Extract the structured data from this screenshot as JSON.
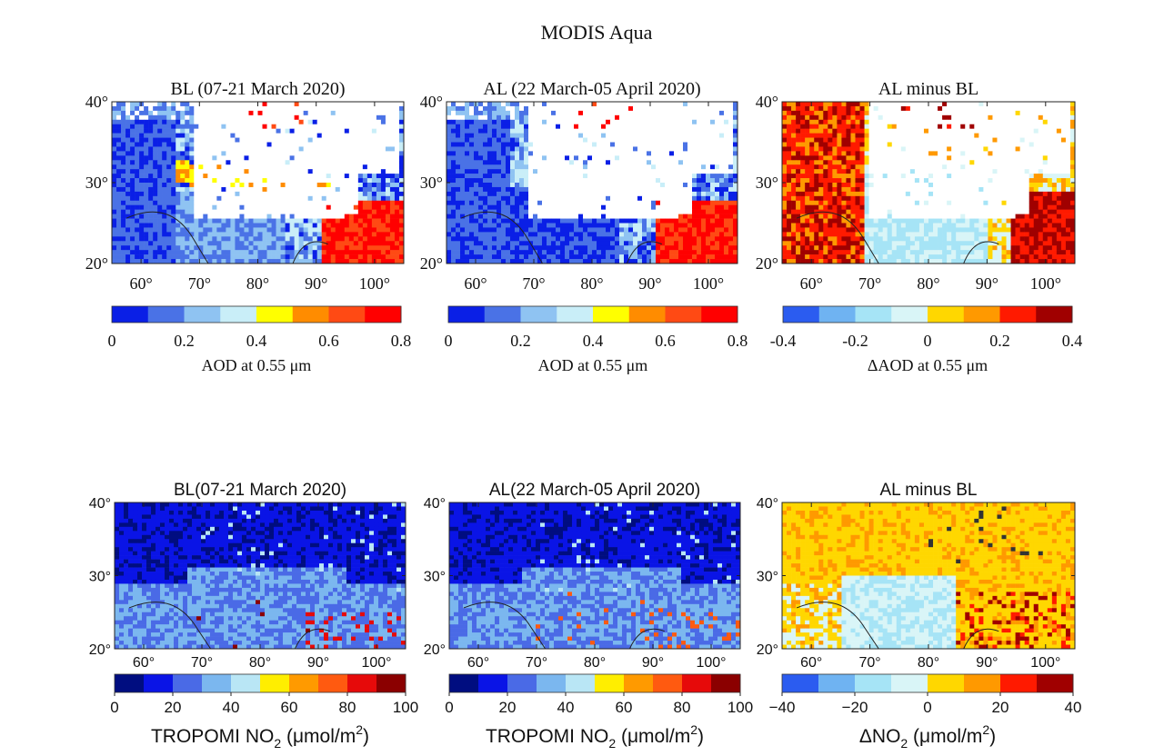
{
  "figure_title": "MODIS Aqua",
  "chart_data": [
    {
      "type": "heatmap",
      "row": "top",
      "title": "BL (07-21 March 2020)",
      "xlabel": "",
      "ylabel": "",
      "xticks": [
        "60°",
        "70°",
        "80°",
        "90°",
        "100°"
      ],
      "xtick_values": [
        60,
        70,
        80,
        90,
        100
      ],
      "yticks": [
        "40°",
        "30°",
        "20°"
      ],
      "ytick_values": [
        40,
        30,
        20
      ],
      "xlim": [
        55,
        105
      ],
      "ylim": [
        20,
        40
      ],
      "colorbar": {
        "label": "AOD at 0.55 μm",
        "ticks": [
          "0",
          "0.2",
          "0.4",
          "0.6",
          "0.8"
        ],
        "range": [
          0,
          0.8
        ],
        "colors": [
          "#0a1fe6",
          "#4a72e6",
          "#8fc3f2",
          "#c9eef8",
          "#ffff00",
          "#ff8c00",
          "#ff4a14",
          "#ff0000"
        ]
      }
    },
    {
      "type": "heatmap",
      "row": "top",
      "title": "AL (22 March-05 April 2020)",
      "xlabel": "",
      "ylabel": "",
      "xticks": [
        "60°",
        "70°",
        "80°",
        "90°",
        "100°"
      ],
      "xtick_values": [
        60,
        70,
        80,
        90,
        100
      ],
      "yticks": [
        "40°",
        "30°",
        "20°"
      ],
      "ytick_values": [
        40,
        30,
        20
      ],
      "xlim": [
        55,
        105
      ],
      "ylim": [
        20,
        40
      ],
      "colorbar": {
        "label": "AOD at 0.55 μm",
        "ticks": [
          "0",
          "0.2",
          "0.4",
          "0.6",
          "0.8"
        ],
        "range": [
          0,
          0.8
        ],
        "colors": [
          "#0a1fe6",
          "#4a72e6",
          "#8fc3f2",
          "#c9eef8",
          "#ffff00",
          "#ff8c00",
          "#ff4a14",
          "#ff0000"
        ]
      }
    },
    {
      "type": "heatmap",
      "row": "top",
      "title": "AL minus BL",
      "xlabel": "",
      "ylabel": "",
      "xticks": [
        "60°",
        "70°",
        "80°",
        "90°",
        "100°"
      ],
      "xtick_values": [
        60,
        70,
        80,
        90,
        100
      ],
      "yticks": [
        "40°",
        "30°",
        "20°"
      ],
      "ytick_values": [
        40,
        30,
        20
      ],
      "xlim": [
        55,
        105
      ],
      "ylim": [
        20,
        40
      ],
      "colorbar": {
        "label": "ΔAOD at 0.55 μm",
        "ticks": [
          "-0.4",
          "-0.2",
          "0",
          "0.2",
          "0.4"
        ],
        "range": [
          -0.4,
          0.4
        ],
        "colors": [
          "#2b5cf0",
          "#6fb3f2",
          "#a6e4f6",
          "#d9f5f7",
          "#ffd700",
          "#ff9900",
          "#ff1a00",
          "#a00000"
        ]
      }
    },
    {
      "type": "heatmap",
      "row": "bottom",
      "title": "BL(07-21 March 2020)",
      "xlabel": "",
      "ylabel": "",
      "xticks": [
        "60°",
        "70°",
        "80°",
        "90°",
        "100°"
      ],
      "xtick_values": [
        60,
        70,
        80,
        90,
        100
      ],
      "yticks": [
        "40°",
        "30°",
        "20°"
      ],
      "ytick_values": [
        40,
        30,
        20
      ],
      "xlim": [
        55,
        105
      ],
      "ylim": [
        20,
        40
      ],
      "colorbar": {
        "label_main": "TROPOMI NO",
        "label_sub": "2",
        "label_unit": " (μmol/m",
        "label_sup": "2",
        "label_end": ")",
        "ticks": [
          "0",
          "20",
          "40",
          "60",
          "80",
          "100"
        ],
        "range": [
          0,
          100
        ],
        "colors": [
          "#000d80",
          "#0a14e6",
          "#4a6ae6",
          "#7bb7ef",
          "#b9e6f5",
          "#ffee00",
          "#ff9a00",
          "#ff5a10",
          "#e60a0a",
          "#8b0000"
        ]
      }
    },
    {
      "type": "heatmap",
      "row": "bottom",
      "title": "AL(22 March-05 April 2020)",
      "xlabel": "",
      "ylabel": "",
      "xticks": [
        "60°",
        "70°",
        "80°",
        "90°",
        "100°"
      ],
      "xtick_values": [
        60,
        70,
        80,
        90,
        100
      ],
      "yticks": [
        "40°",
        "30°",
        "20°"
      ],
      "ytick_values": [
        40,
        30,
        20
      ],
      "xlim": [
        55,
        105
      ],
      "ylim": [
        20,
        40
      ],
      "colorbar": {
        "label_main": "TROPOMI NO",
        "label_sub": "2",
        "label_unit": " (μmol/m",
        "label_sup": "2",
        "label_end": ")",
        "ticks": [
          "0",
          "20",
          "40",
          "60",
          "80",
          "100"
        ],
        "range": [
          0,
          100
        ],
        "colors": [
          "#000d80",
          "#0a14e6",
          "#4a6ae6",
          "#7bb7ef",
          "#b9e6f5",
          "#ffee00",
          "#ff9a00",
          "#ff5a10",
          "#e60a0a",
          "#8b0000"
        ]
      }
    },
    {
      "type": "heatmap",
      "row": "bottom",
      "title": "AL minus BL",
      "xlabel": "",
      "ylabel": "",
      "xticks": [
        "60°",
        "70°",
        "80°",
        "90°",
        "100°"
      ],
      "xtick_values": [
        60,
        70,
        80,
        90,
        100
      ],
      "yticks": [
        "40°",
        "30°",
        "20°"
      ],
      "ytick_values": [
        40,
        30,
        20
      ],
      "xlim": [
        55,
        105
      ],
      "ylim": [
        20,
        40
      ],
      "colorbar": {
        "label_main": "ΔNO",
        "label_sub": "2",
        "label_unit": " (μmol/m",
        "label_sup": "2",
        "label_end": ")",
        "ticks": [
          "−40",
          "−20",
          "0",
          "20",
          "40"
        ],
        "range": [
          -40,
          40
        ],
        "colors": [
          "#2b5cf0",
          "#6fb3f2",
          "#a6e4f6",
          "#d9f5f7",
          "#ffd700",
          "#ff9900",
          "#ff1a00",
          "#a00000"
        ]
      }
    }
  ]
}
